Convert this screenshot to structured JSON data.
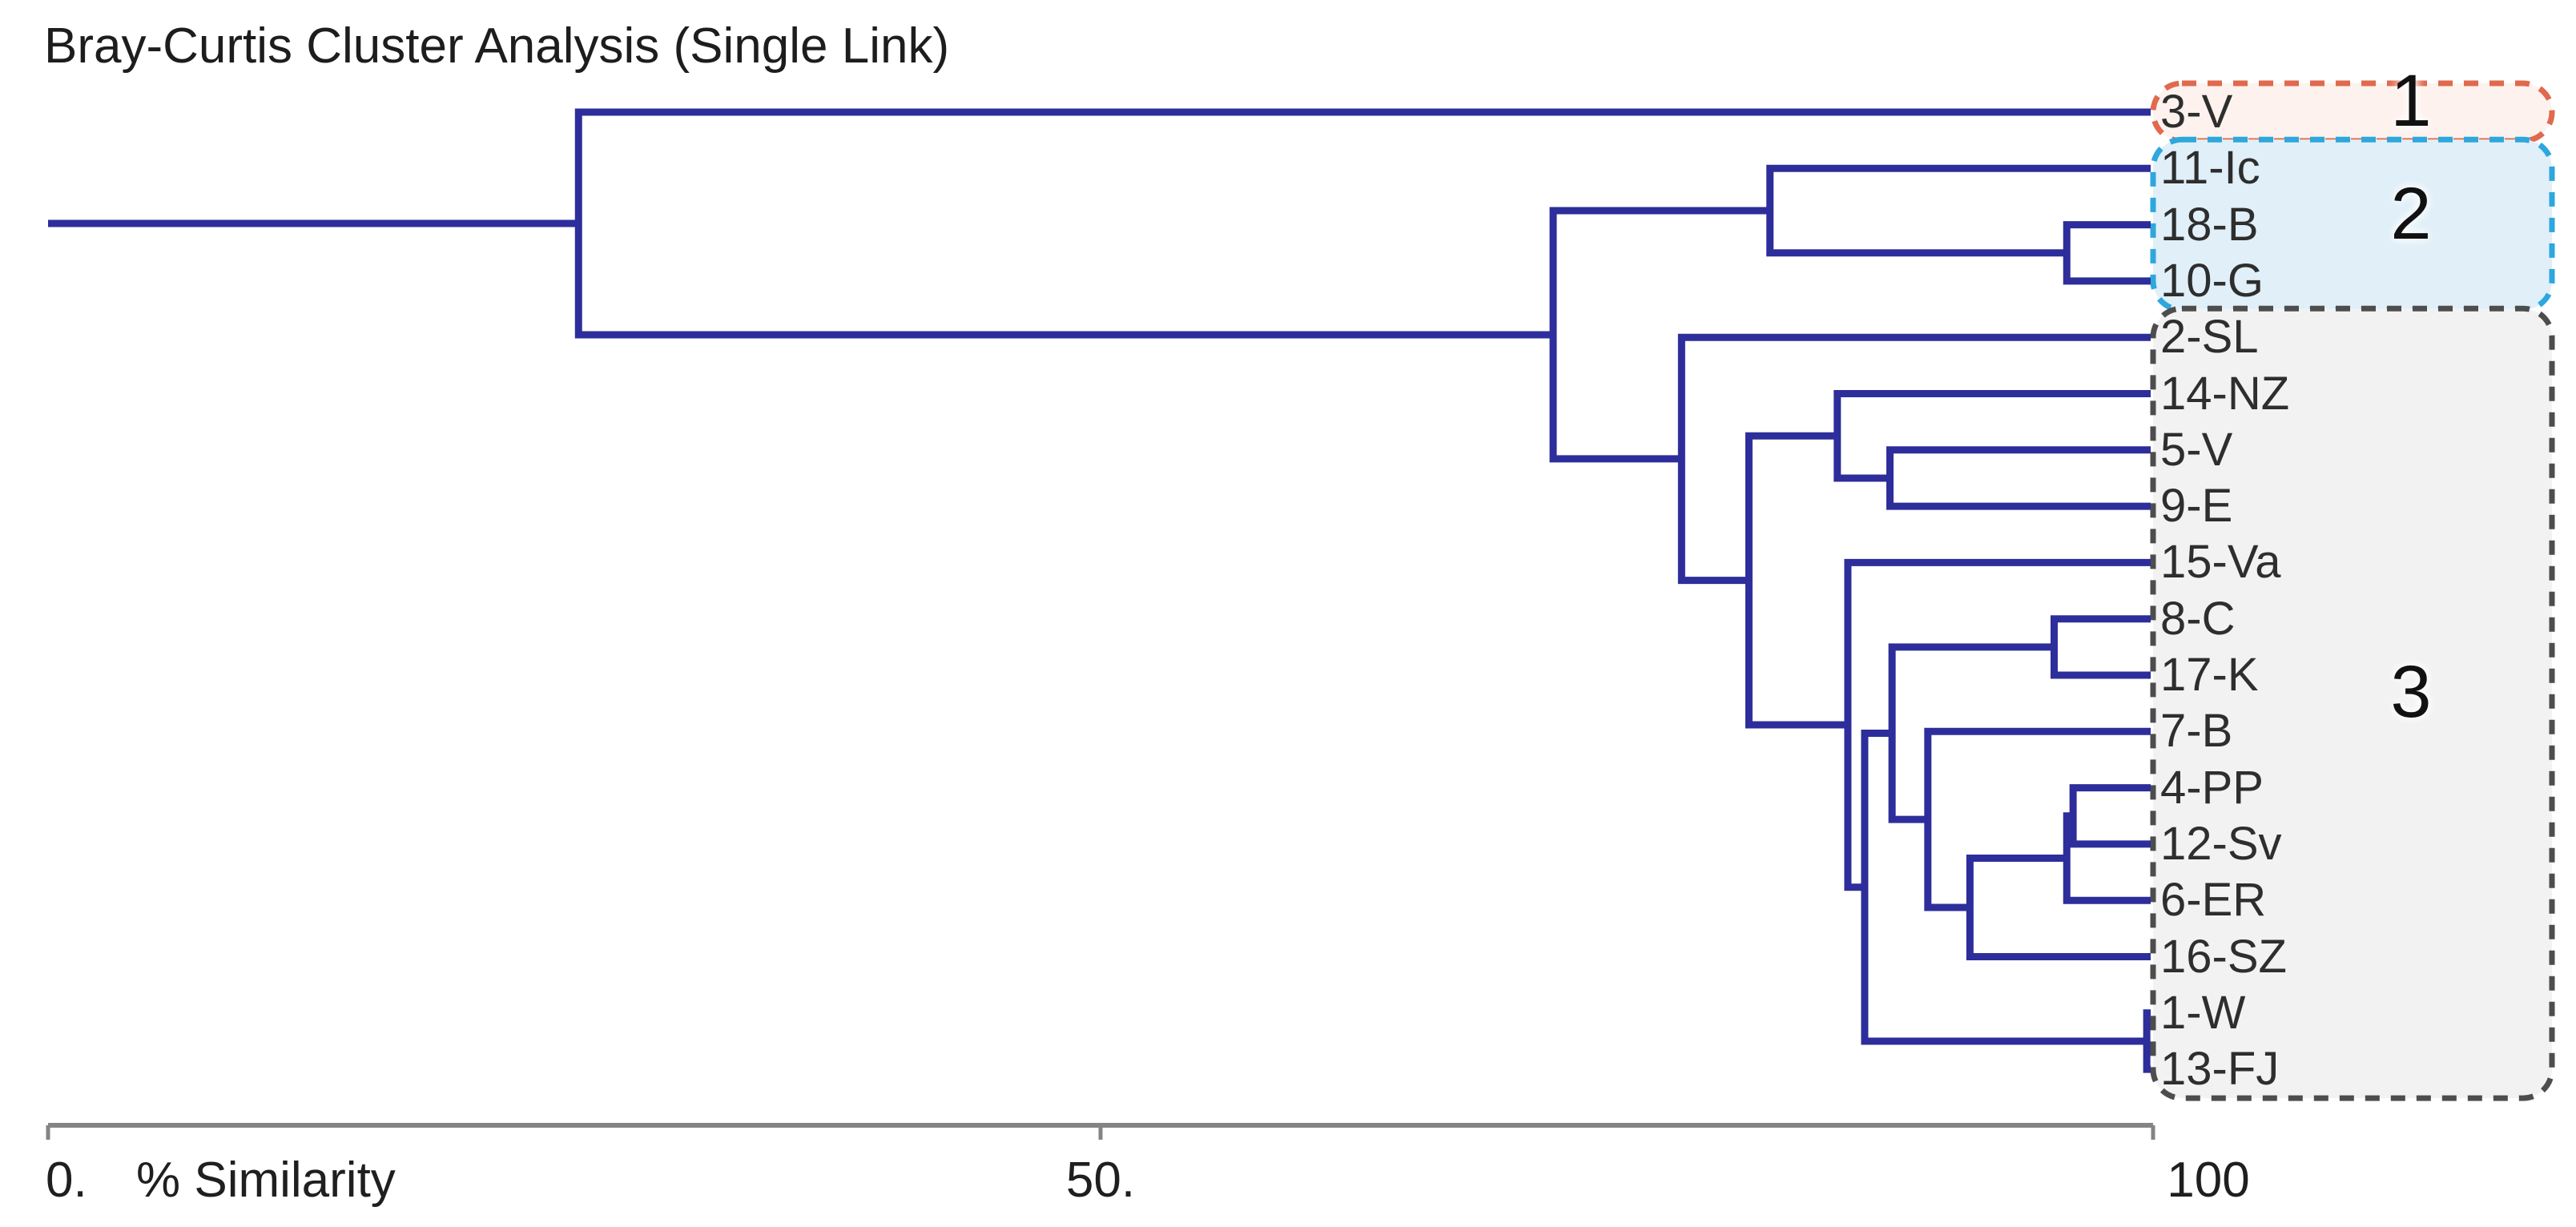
{
  "chart_data": {
    "type": "dendrogram",
    "title": "Bray-Curtis Cluster Analysis (Single Link)",
    "orientation": "horizontal-leaves-right",
    "axis": {
      "title": "% Similarity",
      "range": [
        0,
        100
      ],
      "ticks": [
        {
          "label": "0.",
          "value": 0
        },
        {
          "label": "50.",
          "value": 50
        },
        {
          "label": "100",
          "value": 100
        }
      ]
    },
    "leaves": [
      {
        "label": "3-V"
      },
      {
        "label": "11-Ic"
      },
      {
        "label": "18-B"
      },
      {
        "label": "10-G"
      },
      {
        "label": "2-SL"
      },
      {
        "label": "14-NZ"
      },
      {
        "label": "5-V"
      },
      {
        "label": "9-E"
      },
      {
        "label": "15-Va"
      },
      {
        "label": "8-C"
      },
      {
        "label": "17-K"
      },
      {
        "label": "7-B"
      },
      {
        "label": "4-PP"
      },
      {
        "label": "12-Sv"
      },
      {
        "label": "6-ER"
      },
      {
        "label": "16-SZ"
      },
      {
        "label": "1-W"
      },
      {
        "label": "13-FJ"
      }
    ],
    "merges": [
      {
        "id": "n1",
        "a": "18-B",
        "b": "10-G",
        "similarity": 95.9
      },
      {
        "id": "n2",
        "a": "11-Ic",
        "b": "n1",
        "similarity": 81.8
      },
      {
        "id": "n3",
        "a": "5-V",
        "b": "9-E",
        "similarity": 87.5
      },
      {
        "id": "n4",
        "a": "14-NZ",
        "b": "n3",
        "similarity": 85.0
      },
      {
        "id": "n5",
        "a": "8-C",
        "b": "17-K",
        "similarity": 95.3
      },
      {
        "id": "n6",
        "a": "4-PP",
        "b": "12-Sv",
        "similarity": 96.2
      },
      {
        "id": "n7",
        "a": "n6",
        "b": "6-ER",
        "similarity": 95.9
      },
      {
        "id": "n8",
        "a": "n7",
        "b": "16-SZ",
        "similarity": 91.3
      },
      {
        "id": "n9",
        "a": "7-B",
        "b": "n8",
        "similarity": 89.3
      },
      {
        "id": "n10",
        "a": "n5",
        "b": "n9",
        "similarity": 87.6
      },
      {
        "id": "n11",
        "a": "1-W",
        "b": "13-FJ",
        "similarity": 99.7
      },
      {
        "id": "n12",
        "a": "n10",
        "b": "n11",
        "similarity": 86.3
      },
      {
        "id": "n13",
        "a": "15-Va",
        "b": "n12",
        "similarity": 85.5
      },
      {
        "id": "n14",
        "a": "n4",
        "b": "n13",
        "similarity": 80.8
      },
      {
        "id": "n15",
        "a": "2-SL",
        "b": "n14",
        "similarity": 77.6
      },
      {
        "id": "n16",
        "a": "n2",
        "b": "n15",
        "similarity": 71.5
      },
      {
        "id": "n17",
        "a": "3-V",
        "b": "n16",
        "similarity": 25.2
      }
    ],
    "root_extends_to_similarity": 0,
    "clusters": [
      {
        "number": "1",
        "leaves": [
          "3-V"
        ],
        "border_color": "#e0694e",
        "fill_color": "#fdf2ed"
      },
      {
        "number": "2",
        "leaves": [
          "11-Ic",
          "18-B",
          "10-G"
        ],
        "border_color": "#2ea7dd",
        "fill_color": "#e0eff8"
      },
      {
        "number": "3",
        "leaves": [
          "2-SL",
          "14-NZ",
          "5-V",
          "9-E",
          "15-Va",
          "8-C",
          "17-K",
          "7-B",
          "4-PP",
          "12-Sv",
          "6-ER",
          "16-SZ",
          "1-W",
          "13-FJ"
        ],
        "border_color": "#4d4d4d",
        "fill_color": "#f2f2f2"
      }
    ],
    "colors": {
      "link": "#2d2d9b",
      "axis_line": "#848484",
      "title_text": "#1d1d1d",
      "leaf_text": "#2e2e2e"
    }
  }
}
